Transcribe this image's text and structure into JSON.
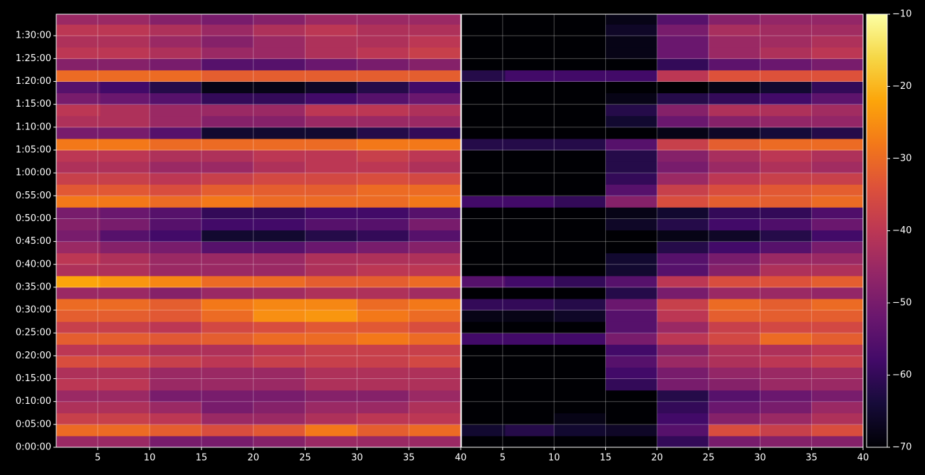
{
  "chart_data": [
    {
      "type": "heatmap",
      "colormap": "inferno",
      "grid": true,
      "x": [
        3,
        7.5,
        12.5,
        17.5,
        22.5,
        27.5,
        32.5,
        37.5
      ],
      "y": [
        1.25,
        3.75,
        6.25,
        8.75,
        11.25,
        13.75,
        16.25,
        18.75,
        21.25,
        23.75,
        26.25,
        28.75,
        31.25,
        33.75,
        36.25,
        38.75,
        41.25,
        43.75,
        46.25,
        48.75,
        51.25,
        53.75,
        56.25,
        58.75,
        61.25,
        63.75,
        66.25,
        68.75,
        71.25,
        73.75,
        76.25,
        78.75,
        81.25,
        83.75,
        86.25,
        88.75,
        91.25,
        93.75
      ],
      "xlim": [
        1,
        40
      ],
      "ylim": [
        0,
        94.7
      ],
      "xticks": [
        5,
        10,
        15,
        20,
        25,
        30,
        35,
        40
      ],
      "yticks": [
        {
          "value": 0,
          "label": "0:00:00"
        },
        {
          "value": 5,
          "label": "0:05:00"
        },
        {
          "value": 10,
          "label": "0:10:00"
        },
        {
          "value": 15,
          "label": "0:15:00"
        },
        {
          "value": 20,
          "label": "0:20:00"
        },
        {
          "value": 25,
          "label": "0:25:00"
        },
        {
          "value": 30,
          "label": "0:30:00"
        },
        {
          "value": 35,
          "label": "0:35:00"
        },
        {
          "value": 40,
          "label": "0:40:00"
        },
        {
          "value": 45,
          "label": "0:45:00"
        },
        {
          "value": 50,
          "label": "0:50:00"
        },
        {
          "value": 55,
          "label": "0:55:00"
        },
        {
          "value": 60,
          "label": "1:00:00"
        },
        {
          "value": 65,
          "label": "1:05:00"
        },
        {
          "value": 70,
          "label": "1:10:00"
        },
        {
          "value": 75,
          "label": "1:15:00"
        },
        {
          "value": 80,
          "label": "1:20:00"
        },
        {
          "value": 85,
          "label": "1:25:00"
        },
        {
          "value": 90,
          "label": "1:30:00"
        }
      ],
      "values": [
        [
          -45,
          -45,
          -50,
          -50,
          -48,
          -45,
          -45,
          -45
        ],
        [
          -30,
          -30,
          -32,
          -35,
          -33,
          -28,
          -32,
          -30
        ],
        [
          -38,
          -38,
          -40,
          -45,
          -45,
          -42,
          -40,
          -40
        ],
        [
          -42,
          -42,
          -45,
          -50,
          -48,
          -45,
          -45,
          -42
        ],
        [
          -45,
          -45,
          -50,
          -50,
          -50,
          -48,
          -48,
          -45
        ],
        [
          -40,
          -40,
          -45,
          -45,
          -45,
          -42,
          -42,
          -42
        ],
        [
          -42,
          -42,
          -45,
          -45,
          -45,
          -42,
          -42,
          -42
        ],
        [
          -35,
          -35,
          -38,
          -40,
          -38,
          -38,
          -38,
          -36
        ],
        [
          -40,
          -40,
          -42,
          -42,
          -40,
          -38,
          -38,
          -38
        ],
        [
          -32,
          -32,
          -33,
          -32,
          -30,
          -30,
          -28,
          -30
        ],
        [
          -38,
          -38,
          -40,
          -36,
          -35,
          -33,
          -33,
          -35
        ],
        [
          -32,
          -32,
          -33,
          -30,
          -25,
          -24,
          -28,
          -30
        ],
        [
          -30,
          -30,
          -32,
          -28,
          -26,
          -26,
          -30,
          -28
        ],
        [
          -45,
          -45,
          -48,
          -45,
          -44,
          -42,
          -42,
          -44
        ],
        [
          -22,
          -24,
          -26,
          -30,
          -30,
          -32,
          -32,
          -30
        ],
        [
          -42,
          -42,
          -45,
          -45,
          -45,
          -42,
          -40,
          -40
        ],
        [
          -40,
          -42,
          -45,
          -45,
          -45,
          -42,
          -42,
          -42
        ],
        [
          -45,
          -48,
          -50,
          -55,
          -55,
          -52,
          -50,
          -48
        ],
        [
          -50,
          -55,
          -58,
          -65,
          -65,
          -62,
          -60,
          -55
        ],
        [
          -48,
          -50,
          -55,
          -58,
          -58,
          -55,
          -55,
          -50
        ],
        [
          -50,
          -52,
          -55,
          -60,
          -60,
          -58,
          -58,
          -55
        ],
        [
          -28,
          -28,
          -30,
          -28,
          -30,
          -30,
          -30,
          -28
        ],
        [
          -33,
          -33,
          -35,
          -32,
          -32,
          -32,
          -30,
          -30
        ],
        [
          -38,
          -38,
          -40,
          -38,
          -36,
          -36,
          -35,
          -36
        ],
        [
          -42,
          -42,
          -45,
          -45,
          -42,
          -40,
          -40,
          -42
        ],
        [
          -40,
          -40,
          -42,
          -42,
          -40,
          -40,
          -38,
          -40
        ],
        [
          -28,
          -28,
          -30,
          -30,
          -30,
          -30,
          -28,
          -28
        ],
        [
          -50,
          -50,
          -55,
          -65,
          -65,
          -65,
          -62,
          -60
        ],
        [
          -42,
          -42,
          -45,
          -48,
          -48,
          -45,
          -45,
          -45
        ],
        [
          -40,
          -42,
          -45,
          -45,
          -45,
          -40,
          -40,
          -42
        ],
        [
          -50,
          -52,
          -55,
          -60,
          -60,
          -58,
          -55,
          -52
        ],
        [
          -55,
          -58,
          -62,
          -68,
          -68,
          -66,
          -62,
          -58
        ],
        [
          -30,
          -30,
          -30,
          -32,
          -32,
          -32,
          -32,
          -32
        ],
        [
          -48,
          -48,
          -50,
          -55,
          -55,
          -52,
          -50,
          -48
        ],
        [
          -40,
          -40,
          -42,
          -45,
          -45,
          -42,
          -40,
          -38
        ],
        [
          -42,
          -42,
          -45,
          -48,
          -45,
          -42,
          -42,
          -40
        ],
        [
          -40,
          -40,
          -42,
          -45,
          -42,
          -40,
          -42,
          -42
        ],
        [
          -45,
          -45,
          -48,
          -50,
          -48,
          -45,
          -45,
          -45
        ]
      ]
    },
    {
      "type": "heatmap",
      "colormap": "inferno",
      "grid": true,
      "x": [
        3,
        7.5,
        12.5,
        17.5,
        22.5,
        27.5,
        32.5,
        37.5
      ],
      "y": [
        1.25,
        3.75,
        6.25,
        8.75,
        11.25,
        13.75,
        16.25,
        18.75,
        21.25,
        23.75,
        26.25,
        28.75,
        31.25,
        33.75,
        36.25,
        38.75,
        41.25,
        43.75,
        46.25,
        48.75,
        51.25,
        53.75,
        56.25,
        58.75,
        61.25,
        63.75,
        66.25,
        68.75,
        71.25,
        73.75,
        76.25,
        78.75,
        81.25,
        83.75,
        86.25,
        88.75,
        91.25,
        93.75
      ],
      "xlim": [
        1,
        40
      ],
      "ylim": [
        0,
        94.7
      ],
      "xticks": [
        5,
        10,
        15,
        20,
        25,
        30,
        35,
        40
      ],
      "values": [
        [
          -70,
          -70,
          -70,
          -70,
          -60,
          -50,
          -48,
          -48
        ],
        [
          -65,
          -62,
          -65,
          -66,
          -55,
          -35,
          -38,
          -35
        ],
        [
          -70,
          -70,
          -68,
          -70,
          -58,
          -48,
          -45,
          -42
        ],
        [
          -70,
          -70,
          -70,
          -70,
          -60,
          -52,
          -50,
          -45
        ],
        [
          -70,
          -70,
          -70,
          -70,
          -62,
          -55,
          -52,
          -50
        ],
        [
          -70,
          -70,
          -70,
          -60,
          -50,
          -48,
          -45,
          -45
        ],
        [
          -70,
          -70,
          -70,
          -58,
          -50,
          -46,
          -45,
          -44
        ],
        [
          -70,
          -70,
          -70,
          -55,
          -45,
          -42,
          -40,
          -38
        ],
        [
          -70,
          -70,
          -70,
          -58,
          -48,
          -42,
          -42,
          -40
        ],
        [
          -58,
          -58,
          -58,
          -50,
          -40,
          -36,
          -30,
          -32
        ],
        [
          -70,
          -70,
          -70,
          -55,
          -45,
          -38,
          -36,
          -36
        ],
        [
          -68,
          -68,
          -66,
          -55,
          -40,
          -32,
          -32,
          -32
        ],
        [
          -60,
          -60,
          -62,
          -52,
          -38,
          -30,
          -32,
          -30
        ],
        [
          -70,
          -70,
          -70,
          -62,
          -50,
          -45,
          -45,
          -46
        ],
        [
          -55,
          -58,
          -60,
          -55,
          -40,
          -35,
          -34,
          -32
        ],
        [
          -70,
          -70,
          -70,
          -65,
          -55,
          -48,
          -42,
          -42
        ],
        [
          -70,
          -70,
          -70,
          -65,
          -55,
          -50,
          -45,
          -45
        ],
        [
          -70,
          -70,
          -70,
          -70,
          -62,
          -58,
          -55,
          -50
        ],
        [
          -70,
          -70,
          -70,
          -70,
          -68,
          -66,
          -62,
          -58
        ],
        [
          -70,
          -70,
          -70,
          -66,
          -62,
          -58,
          -56,
          -52
        ],
        [
          -70,
          -70,
          -70,
          -68,
          -65,
          -60,
          -60,
          -56
        ],
        [
          -58,
          -58,
          -60,
          -48,
          -35,
          -32,
          -32,
          -30
        ],
        [
          -70,
          -70,
          -70,
          -55,
          -38,
          -35,
          -33,
          -32
        ],
        [
          -70,
          -70,
          -70,
          -60,
          -45,
          -40,
          -38,
          -38
        ],
        [
          -70,
          -70,
          -70,
          -62,
          -50,
          -45,
          -42,
          -44
        ],
        [
          -70,
          -70,
          -70,
          -62,
          -48,
          -43,
          -40,
          -42
        ],
        [
          -62,
          -62,
          -62,
          -55,
          -38,
          -32,
          -30,
          -30
        ],
        [
          -70,
          -70,
          -70,
          -70,
          -68,
          -66,
          -64,
          -62
        ],
        [
          -70,
          -70,
          -70,
          -65,
          -52,
          -48,
          -46,
          -46
        ],
        [
          -70,
          -70,
          -70,
          -62,
          -48,
          -42,
          -42,
          -44
        ],
        [
          -70,
          -70,
          -70,
          -68,
          -62,
          -60,
          -58,
          -54
        ],
        [
          -70,
          -70,
          -70,
          -70,
          -70,
          -68,
          -65,
          -60
        ],
        [
          -62,
          -58,
          -58,
          -58,
          -40,
          -34,
          -34,
          -34
        ],
        [
          -70,
          -70,
          -70,
          -70,
          -60,
          -54,
          -52,
          -50
        ],
        [
          -70,
          -70,
          -70,
          -68,
          -52,
          -45,
          -42,
          -40
        ],
        [
          -70,
          -70,
          -70,
          -68,
          -52,
          -45,
          -44,
          -42
        ],
        [
          -70,
          -70,
          -70,
          -66,
          -50,
          -43,
          -44,
          -44
        ],
        [
          -70,
          -70,
          -70,
          -68,
          -55,
          -48,
          -46,
          -46
        ]
      ],
      "colorbar": {
        "lim": [
          -70,
          -10
        ],
        "ticks": [
          {
            "value": -70,
            "label": "−70"
          },
          {
            "value": -60,
            "label": "−60"
          },
          {
            "value": -50,
            "label": "−50"
          },
          {
            "value": -40,
            "label": "−40"
          },
          {
            "value": -30,
            "label": "−30"
          },
          {
            "value": -20,
            "label": "−20"
          },
          {
            "value": -10,
            "label": "−10"
          }
        ]
      }
    }
  ]
}
